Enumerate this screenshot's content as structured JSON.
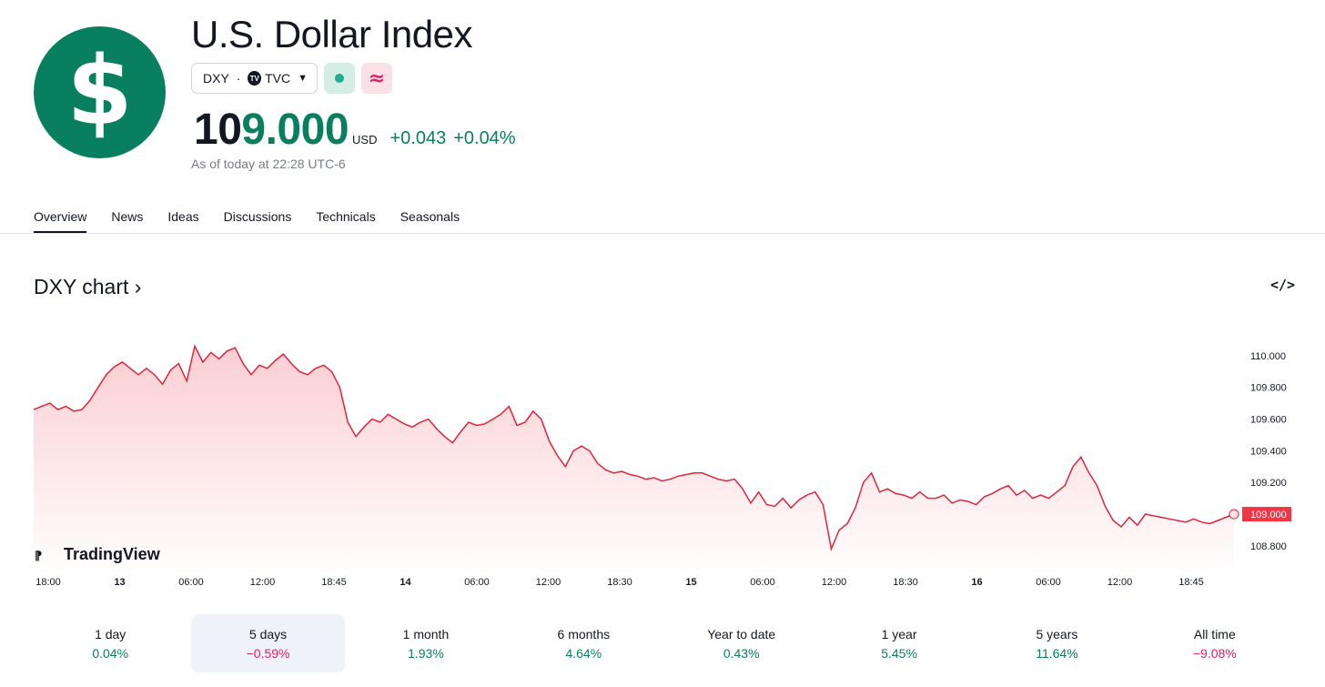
{
  "header": {
    "logo_glyph": "$",
    "title": "U.S. Dollar Index",
    "symbol": "DXY",
    "exchange": "TVC",
    "exchange_icon": "tradingview-mini-icon",
    "status_icon": "market-open-dot-icon",
    "delayed_icon": "approx-icon",
    "price_main": "10",
    "price_highlight": "9.000",
    "currency": "USD",
    "change_abs": "+0.043",
    "change_pct": "+0.04%",
    "as_of": "As of today at 22:28 UTC-6"
  },
  "tabs": [
    "Overview",
    "News",
    "Ideas",
    "Discussions",
    "Technicals",
    "Seasonals"
  ],
  "chart_section": {
    "title": "DXY chart",
    "embed_label": "</>"
  },
  "chart_data": {
    "type": "area",
    "watermark": "TradingView",
    "x_ticks": [
      {
        "label": "18:00",
        "bold": false
      },
      {
        "label": "13",
        "bold": true
      },
      {
        "label": "06:00",
        "bold": false
      },
      {
        "label": "12:00",
        "bold": false
      },
      {
        "label": "18:45",
        "bold": false
      },
      {
        "label": "14",
        "bold": true
      },
      {
        "label": "06:00",
        "bold": false
      },
      {
        "label": "12:00",
        "bold": false
      },
      {
        "label": "18:30",
        "bold": false
      },
      {
        "label": "15",
        "bold": true
      },
      {
        "label": "06:00",
        "bold": false
      },
      {
        "label": "12:00",
        "bold": false
      },
      {
        "label": "18:30",
        "bold": false
      },
      {
        "label": "16",
        "bold": true
      },
      {
        "label": "06:00",
        "bold": false
      },
      {
        "label": "12:00",
        "bold": false
      },
      {
        "label": "18:45",
        "bold": false
      }
    ],
    "y_ticks": [
      "110.000",
      "109.800",
      "109.600",
      "109.400",
      "109.200",
      "108.800"
    ],
    "ylim": [
      108.65,
      110.12
    ],
    "last_price_label": "109.000",
    "line_color": "#e0243a",
    "series": [
      {
        "values": [
          109.66,
          109.68,
          109.7,
          109.66,
          109.68,
          109.65,
          109.66,
          109.72,
          109.8,
          109.88,
          109.93,
          109.96,
          109.92,
          109.88,
          109.92,
          109.88,
          109.82,
          109.91,
          109.95,
          109.84,
          110.06,
          109.96,
          110.02,
          109.98,
          110.03,
          110.05,
          109.95,
          109.88,
          109.94,
          109.92,
          109.97,
          110.01,
          109.95,
          109.9,
          109.88,
          109.92,
          109.94,
          109.9,
          109.8,
          109.58,
          109.49,
          109.55,
          109.6,
          109.58,
          109.63,
          109.6,
          109.57,
          109.55,
          109.58,
          109.6,
          109.54,
          109.49,
          109.45,
          109.52,
          109.58,
          109.56,
          109.57,
          109.6,
          109.63,
          109.68,
          109.56,
          109.58,
          109.65,
          109.6,
          109.46,
          109.37,
          109.3,
          109.4,
          109.43,
          109.4,
          109.32,
          109.28,
          109.26,
          109.27,
          109.25,
          109.24,
          109.22,
          109.23,
          109.21,
          109.22,
          109.24,
          109.25,
          109.26,
          109.26,
          109.24,
          109.22,
          109.21,
          109.22,
          109.16,
          109.07,
          109.14,
          109.06,
          109.05,
          109.1,
          109.04,
          109.09,
          109.12,
          109.14,
          109.06,
          108.78,
          108.9,
          108.94,
          109.04,
          109.2,
          109.26,
          109.14,
          109.16,
          109.13,
          109.12,
          109.1,
          109.14,
          109.1,
          109.1,
          109.12,
          109.07,
          109.09,
          109.08,
          109.06,
          109.11,
          109.13,
          109.16,
          109.18,
          109.12,
          109.15,
          109.1,
          109.12,
          109.1,
          109.14,
          109.18,
          109.3,
          109.36,
          109.26,
          109.18,
          109.05,
          108.96,
          108.92,
          108.98,
          108.93,
          109.0,
          108.99,
          108.98,
          108.97,
          108.96,
          108.95,
          108.97,
          108.95,
          108.94,
          108.96,
          108.98,
          109.0
        ]
      }
    ]
  },
  "ranges": [
    {
      "label": "1 day",
      "value": "0.04%",
      "dir": "pos"
    },
    {
      "label": "5 days",
      "value": "−0.59%",
      "dir": "neg"
    },
    {
      "label": "1 month",
      "value": "1.93%",
      "dir": "pos"
    },
    {
      "label": "6 months",
      "value": "4.64%",
      "dir": "pos"
    },
    {
      "label": "Year to date",
      "value": "0.43%",
      "dir": "pos"
    },
    {
      "label": "1 year",
      "value": "5.45%",
      "dir": "pos"
    },
    {
      "label": "5 years",
      "value": "11.64%",
      "dir": "pos"
    },
    {
      "label": "All time",
      "value": "−9.08%",
      "dir": "neg"
    }
  ],
  "selected_range": "5 days",
  "colors": {
    "brand_green": "#088060",
    "negative": "#e0245e",
    "line": "#e0243a"
  }
}
